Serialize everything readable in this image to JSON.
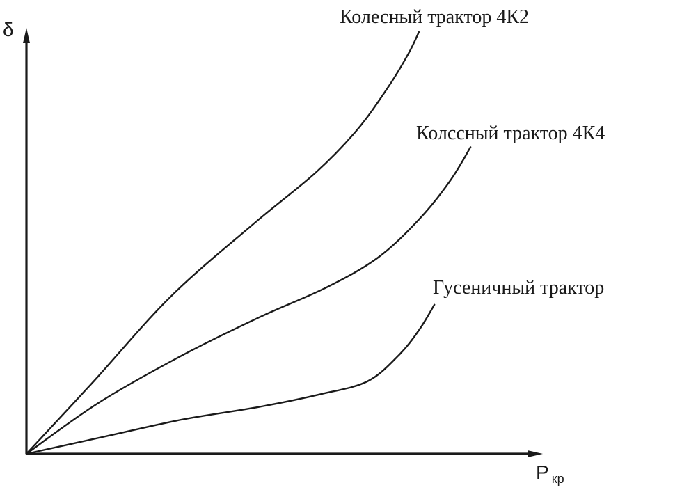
{
  "chart_data": {
    "type": "line",
    "grid": false,
    "xlabel": "P",
    "xlabel_subscript": "кр",
    "ylabel": "δ",
    "xlim": [
      0,
      1
    ],
    "ylim": [
      0,
      1
    ],
    "series": [
      {
        "name": "Колесный трактор 4К2",
        "points": [
          [
            0,
            0
          ],
          [
            0.13,
            0.17
          ],
          [
            0.28,
            0.37
          ],
          [
            0.44,
            0.54
          ],
          [
            0.56,
            0.66
          ],
          [
            0.64,
            0.76
          ],
          [
            0.7,
            0.86
          ],
          [
            0.74,
            0.94
          ],
          [
            0.76,
            0.99
          ]
        ]
      },
      {
        "name": "Колссный трактор 4К4",
        "points": [
          [
            0,
            0
          ],
          [
            0.14,
            0.12
          ],
          [
            0.3,
            0.23
          ],
          [
            0.45,
            0.32
          ],
          [
            0.58,
            0.39
          ],
          [
            0.68,
            0.46
          ],
          [
            0.76,
            0.55
          ],
          [
            0.82,
            0.64
          ],
          [
            0.86,
            0.72
          ]
        ]
      },
      {
        "name": "Гусеничный трактор",
        "points": [
          [
            0,
            0
          ],
          [
            0.15,
            0.04
          ],
          [
            0.3,
            0.08
          ],
          [
            0.45,
            0.11
          ],
          [
            0.57,
            0.14
          ],
          [
            0.66,
            0.17
          ],
          [
            0.72,
            0.23
          ],
          [
            0.76,
            0.29
          ],
          [
            0.79,
            0.35
          ]
        ]
      }
    ]
  }
}
